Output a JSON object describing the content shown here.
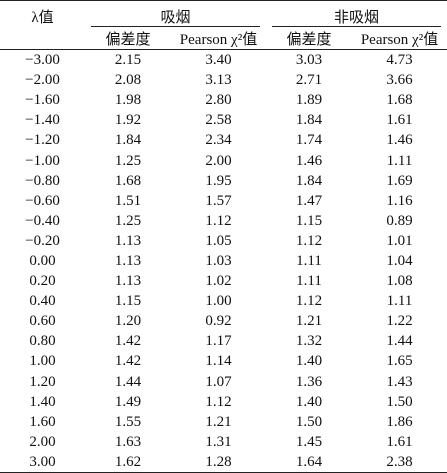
{
  "headers": {
    "lambda": "λ值",
    "group_smoking": "吸烟",
    "group_nonsmoking": "非吸烟",
    "deviance": "偏差度",
    "pearson": "Pearson χ²值"
  },
  "rows": [
    {
      "lambda": "−3.00",
      "s_dev": "2.15",
      "s_pearson": "3.40",
      "n_dev": "3.03",
      "n_pearson": "4.73"
    },
    {
      "lambda": "−2.00",
      "s_dev": "2.08",
      "s_pearson": "3.13",
      "n_dev": "2.71",
      "n_pearson": "3.66"
    },
    {
      "lambda": "−1.60",
      "s_dev": "1.98",
      "s_pearson": "2.80",
      "n_dev": "1.89",
      "n_pearson": "1.68"
    },
    {
      "lambda": "−1.40",
      "s_dev": "1.92",
      "s_pearson": "2.58",
      "n_dev": "1.84",
      "n_pearson": "1.61"
    },
    {
      "lambda": "−1.20",
      "s_dev": "1.84",
      "s_pearson": "2.34",
      "n_dev": "1.74",
      "n_pearson": "1.46"
    },
    {
      "lambda": "−1.00",
      "s_dev": "1.25",
      "s_pearson": "2.00",
      "n_dev": "1.46",
      "n_pearson": "1.11"
    },
    {
      "lambda": "−0.80",
      "s_dev": "1.68",
      "s_pearson": "1.95",
      "n_dev": "1.84",
      "n_pearson": "1.69"
    },
    {
      "lambda": "−0.60",
      "s_dev": "1.51",
      "s_pearson": "1.57",
      "n_dev": "1.47",
      "n_pearson": "1.16"
    },
    {
      "lambda": "−0.40",
      "s_dev": "1.25",
      "s_pearson": "1.12",
      "n_dev": "1.15",
      "n_pearson": "0.89"
    },
    {
      "lambda": "−0.20",
      "s_dev": "1.13",
      "s_pearson": "1.05",
      "n_dev": "1.12",
      "n_pearson": "1.01"
    },
    {
      "lambda": "0.00",
      "s_dev": "1.13",
      "s_pearson": "1.03",
      "n_dev": "1.11",
      "n_pearson": "1.04"
    },
    {
      "lambda": "0.20",
      "s_dev": "1.13",
      "s_pearson": "1.02",
      "n_dev": "1.11",
      "n_pearson": "1.08"
    },
    {
      "lambda": "0.40",
      "s_dev": "1.15",
      "s_pearson": "1.00",
      "n_dev": "1.12",
      "n_pearson": "1.11"
    },
    {
      "lambda": "0.60",
      "s_dev": "1.20",
      "s_pearson": "0.92",
      "n_dev": "1.21",
      "n_pearson": "1.22"
    },
    {
      "lambda": "0.80",
      "s_dev": "1.42",
      "s_pearson": "1.17",
      "n_dev": "1.32",
      "n_pearson": "1.44"
    },
    {
      "lambda": "1.00",
      "s_dev": "1.42",
      "s_pearson": "1.14",
      "n_dev": "1.40",
      "n_pearson": "1.65"
    },
    {
      "lambda": "1.20",
      "s_dev": "1.44",
      "s_pearson": "1.07",
      "n_dev": "1.36",
      "n_pearson": "1.43"
    },
    {
      "lambda": "1.40",
      "s_dev": "1.49",
      "s_pearson": "1.12",
      "n_dev": "1.40",
      "n_pearson": "1.50"
    },
    {
      "lambda": "1.60",
      "s_dev": "1.55",
      "s_pearson": "1.21",
      "n_dev": "1.50",
      "n_pearson": "1.86"
    },
    {
      "lambda": "2.00",
      "s_dev": "1.63",
      "s_pearson": "1.31",
      "n_dev": "1.45",
      "n_pearson": "1.61"
    },
    {
      "lambda": "3.00",
      "s_dev": "1.62",
      "s_pearson": "1.28",
      "n_dev": "1.64",
      "n_pearson": "2.38"
    }
  ]
}
